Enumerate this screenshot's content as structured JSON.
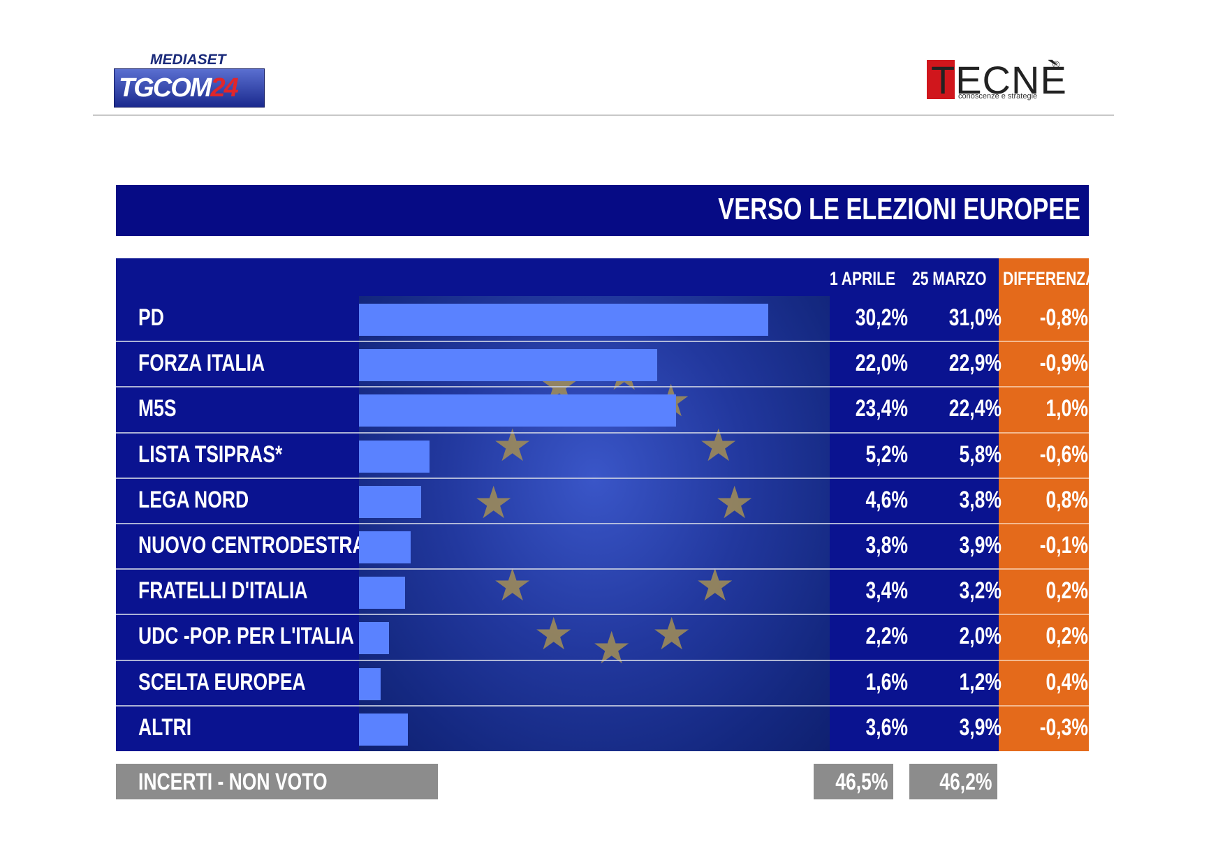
{
  "logos": {
    "left_top": "MEDIASET",
    "left_main_a": "TG",
    "left_main_b": "COM",
    "left_main_c": "24",
    "right_main": "TECNÈ",
    "right_reg": "®",
    "right_sub": "conoscenze e strategie"
  },
  "title": "VERSO LE ELEZIONI EUROPEE",
  "colors": {
    "navy": "#0a1390",
    "bar": "#5a82ff",
    "diff": "#e46a1b",
    "grey": "#8c8c8c"
  },
  "chart_data": {
    "type": "table",
    "columns": [
      "1 APRILE",
      "25 MARZO",
      "DIFFERENZA"
    ],
    "rows": [
      {
        "party": "PD",
        "apr1": "30,2%",
        "mar25": "31,0%",
        "diff": "-0,8%"
      },
      {
        "party": "FORZA ITALIA",
        "apr1": "22,0%",
        "mar25": "22,9%",
        "diff": "-0,9%"
      },
      {
        "party": "M5S",
        "apr1": "23,4%",
        "mar25": "22,4%",
        "diff": "1,0%"
      },
      {
        "party": "LISTA TSIPRAS*",
        "apr1": "5,2%",
        "mar25": "5,8%",
        "diff": "-0,6%"
      },
      {
        "party": "LEGA NORD",
        "apr1": "4,6%",
        "mar25": "3,8%",
        "diff": "0,8%"
      },
      {
        "party": "NUOVO CENTRODESTRA",
        "apr1": "3,8%",
        "mar25": "3,9%",
        "diff": "-0,1%"
      },
      {
        "party": "FRATELLI D'ITALIA",
        "apr1": "3,4%",
        "mar25": "3,2%",
        "diff": "0,2%"
      },
      {
        "party": "UDC -POP. PER L'ITALIA",
        "apr1": "2,2%",
        "mar25": "2,0%",
        "diff": "0,2%"
      },
      {
        "party": "SCELTA EUROPEA",
        "apr1": "1,6%",
        "mar25": "1,2%",
        "diff": "0,4%"
      },
      {
        "party": "ALTRI",
        "apr1": "3,6%",
        "mar25": "3,9%",
        "diff": "-0,3%"
      }
    ],
    "bar_values": [
      30.2,
      22.0,
      23.4,
      5.2,
      4.6,
      3.8,
      3.4,
      2.2,
      1.6,
      3.6
    ],
    "bar_series": "1 APRILE",
    "undecided": {
      "label": "INCERTI - NON VOTO",
      "apr1": "46,5%",
      "mar25": "46,2%"
    }
  }
}
